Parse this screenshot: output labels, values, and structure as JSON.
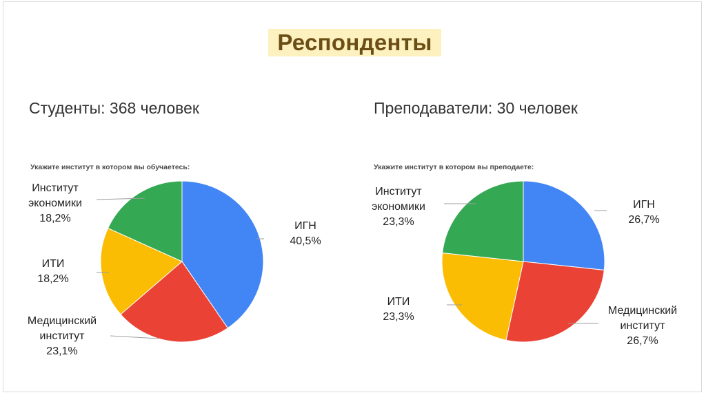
{
  "page": {
    "title": "Респонденты"
  },
  "chart_data": [
    {
      "type": "pie",
      "group_caption": "Студенты: 368 человек",
      "title": "Укажите институт в котором вы обучаетесь:",
      "slices": [
        {
          "label": "ИГН",
          "value": 40.5,
          "display": "40,5%",
          "color": "#4285f4"
        },
        {
          "label": "Медицинский институт",
          "value": 23.1,
          "display": "23,1%",
          "color": "#ea4335"
        },
        {
          "label": "ИТИ",
          "value": 18.2,
          "display": "18,2%",
          "color": "#fbbc04"
        },
        {
          "label": "Институт экономики",
          "value": 18.2,
          "display": "18,2%",
          "color": "#34a853"
        }
      ],
      "start_angle_deg": 0,
      "direction": "clockwise",
      "legend": "none",
      "labels": "outside-with-leader-lines"
    },
    {
      "type": "pie",
      "group_caption": "Преподаватели: 30 человек",
      "title": "Укажите институт в котором вы преподаете:",
      "slices": [
        {
          "label": "ИГН",
          "value": 26.7,
          "display": "26,7%",
          "color": "#4285f4"
        },
        {
          "label": "Медицинский институт",
          "value": 26.7,
          "display": "26,7%",
          "color": "#ea4335"
        },
        {
          "label": "ИТИ",
          "value": 23.3,
          "display": "23,3%",
          "color": "#fbbc04"
        },
        {
          "label": "Институт экономики",
          "value": 23.3,
          "display": "23,3%",
          "color": "#34a853"
        }
      ],
      "start_angle_deg": 0,
      "direction": "clockwise",
      "legend": "none",
      "labels": "outside-with-leader-lines"
    }
  ],
  "labels_text": {
    "left": {
      "igh": [
        "ИГН",
        "40,5%"
      ],
      "med": [
        "Медицинский",
        "институт",
        "23,1%"
      ],
      "iti": [
        "ИТИ",
        "18,2%"
      ],
      "eco": [
        "Институт",
        "экономики",
        "18,2%"
      ]
    },
    "right": {
      "igh": [
        "ИГН",
        "26,7%"
      ],
      "med": [
        "Медицинский",
        "институт",
        "26,7%"
      ],
      "iti": [
        "ИТИ",
        "23,3%"
      ],
      "eco": [
        "Институт",
        "экономики",
        "23,3%"
      ]
    }
  }
}
